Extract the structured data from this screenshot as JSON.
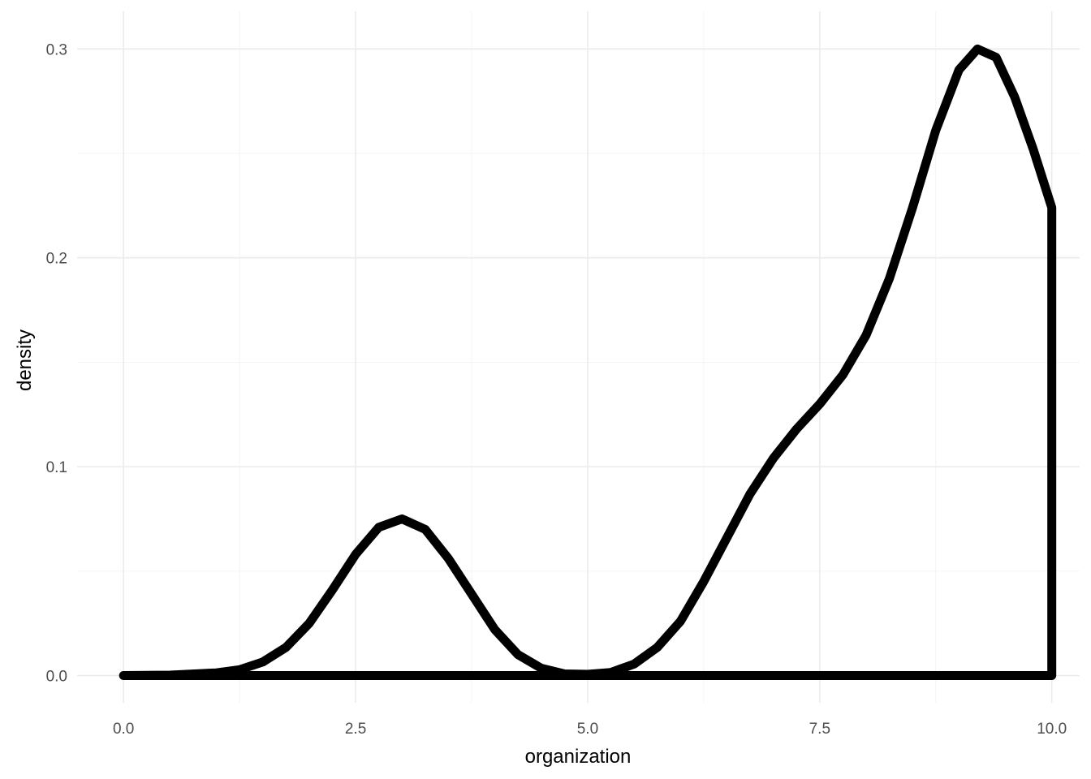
{
  "chart_data": {
    "type": "area",
    "xlabel": "organization",
    "ylabel": "density",
    "xlim": [
      -0.5,
      10.3
    ],
    "ylim": [
      -0.013,
      0.318
    ],
    "x_ticks": [
      {
        "value": 0.0,
        "label": "0.0"
      },
      {
        "value": 2.5,
        "label": "2.5"
      },
      {
        "value": 5.0,
        "label": "5.0"
      },
      {
        "value": 7.5,
        "label": "7.5"
      },
      {
        "value": 10.0,
        "label": "10.0"
      }
    ],
    "x_minor_ticks": [
      1.25,
      3.75,
      6.25,
      8.75
    ],
    "y_ticks": [
      {
        "value": 0.0,
        "label": "0.0"
      },
      {
        "value": 0.1,
        "label": "0.1"
      },
      {
        "value": 0.2,
        "label": "0.2"
      },
      {
        "value": 0.3,
        "label": "0.3"
      }
    ],
    "y_minor_ticks": [
      0.05,
      0.15,
      0.25
    ],
    "grid": true,
    "legend": "none",
    "line_color": "#000000",
    "series": [
      {
        "x": [
          0.0,
          0.5,
          1.0,
          1.25,
          1.5,
          1.75,
          2.0,
          2.25,
          2.5,
          2.75,
          3.0,
          3.25,
          3.5,
          3.75,
          4.0,
          4.25,
          4.5,
          4.75,
          5.0,
          5.25,
          5.5,
          5.75,
          6.0,
          6.25,
          6.5,
          6.75,
          7.0,
          7.25,
          7.5,
          7.75,
          8.0,
          8.25,
          8.5,
          8.75,
          9.0,
          9.2,
          9.4,
          9.6,
          9.8,
          10.0,
          10.0,
          0.0
        ],
        "y": [
          0.0,
          0.0002,
          0.0013,
          0.0028,
          0.0065,
          0.0135,
          0.025,
          0.041,
          0.058,
          0.071,
          0.075,
          0.07,
          0.056,
          0.039,
          0.022,
          0.01,
          0.0035,
          0.0008,
          0.0006,
          0.0015,
          0.0055,
          0.0135,
          0.026,
          0.045,
          0.066,
          0.087,
          0.104,
          0.118,
          0.13,
          0.144,
          0.163,
          0.19,
          0.224,
          0.261,
          0.29,
          0.3,
          0.296,
          0.277,
          0.252,
          0.224,
          0.0,
          0.0
        ]
      }
    ]
  }
}
